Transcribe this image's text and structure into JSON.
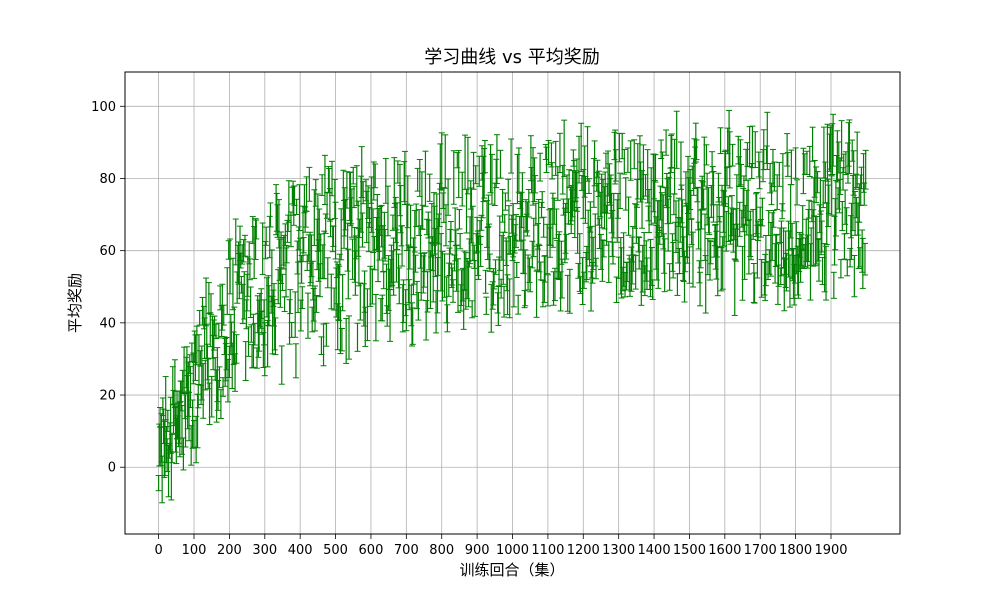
{
  "chart_data": {
    "type": "scatter",
    "title": "学习曲线 vs 平均奖励",
    "xlabel": "训练回合（集）",
    "ylabel": "平均奖励",
    "xlim": [
      -95,
      2095
    ],
    "ylim": [
      -18.5,
      109.5
    ],
    "x_ticks": [
      0,
      100,
      200,
      300,
      400,
      500,
      600,
      700,
      800,
      900,
      1000,
      1100,
      1200,
      1300,
      1400,
      1500,
      1600,
      1700,
      1800,
      1900
    ],
    "y_ticks": [
      0,
      20,
      40,
      60,
      80,
      100
    ],
    "grid": true,
    "color": "#008000",
    "error_bars": true,
    "series": [
      {
        "x_range": [
          0,
          1999
        ],
        "mean_envelope": [
          {
            "x": 0,
            "mean": 5,
            "spread": 14
          },
          {
            "x": 50,
            "mean": 12,
            "spread": 20
          },
          {
            "x": 100,
            "mean": 20,
            "spread": 24
          },
          {
            "x": 150,
            "mean": 33,
            "spread": 26
          },
          {
            "x": 200,
            "mean": 40,
            "spread": 30
          },
          {
            "x": 300,
            "mean": 48,
            "spread": 34
          },
          {
            "x": 400,
            "mean": 54,
            "spread": 34
          },
          {
            "x": 500,
            "mean": 57,
            "spread": 34
          },
          {
            "x": 600,
            "mean": 60,
            "spread": 33
          },
          {
            "x": 800,
            "mean": 63,
            "spread": 32
          },
          {
            "x": 1000,
            "mean": 66,
            "spread": 31
          },
          {
            "x": 1200,
            "mean": 68,
            "spread": 30
          },
          {
            "x": 1400,
            "mean": 70,
            "spread": 30
          },
          {
            "x": 1600,
            "mean": 70,
            "spread": 30
          },
          {
            "x": 1800,
            "mean": 71,
            "spread": 30
          },
          {
            "x": 1999,
            "mean": 71,
            "spread": 30
          }
        ]
      }
    ]
  }
}
